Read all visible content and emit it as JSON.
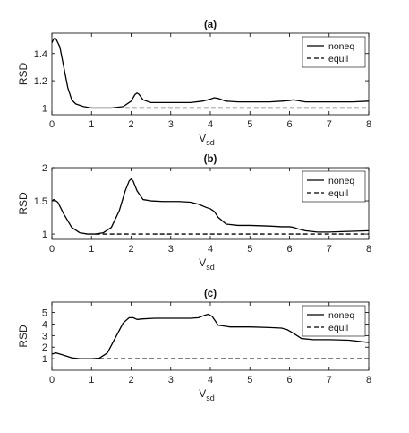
{
  "chart_data": [
    {
      "type": "line",
      "title": "(a)",
      "xlabel": "V",
      "xlabel_sub": "sd",
      "ylabel": "RSD",
      "xlim": [
        0,
        8
      ],
      "ylim": [
        0.95,
        1.55
      ],
      "xticks": [
        0,
        1,
        2,
        3,
        4,
        5,
        6,
        7,
        8
      ],
      "yticks": [
        1,
        1.2,
        1.4
      ],
      "legend": {
        "position": "top-right",
        "entries": [
          "noneq",
          "equil"
        ]
      },
      "series": [
        {
          "name": "noneq",
          "style": "solid",
          "x": [
            0,
            0.05,
            0.1,
            0.2,
            0.3,
            0.4,
            0.5,
            0.6,
            0.8,
            1.0,
            1.5,
            1.8,
            2.0,
            2.1,
            2.15,
            2.2,
            2.3,
            2.5,
            3.0,
            3.5,
            3.8,
            4.0,
            4.1,
            4.2,
            4.4,
            4.7,
            5.0,
            5.5,
            5.8,
            6.0,
            6.1,
            6.2,
            6.4,
            6.8,
            7.2,
            7.6,
            8.0
          ],
          "y": [
            1.48,
            1.51,
            1.51,
            1.45,
            1.3,
            1.15,
            1.06,
            1.03,
            1.01,
            1.0,
            1.0,
            1.01,
            1.05,
            1.1,
            1.11,
            1.1,
            1.06,
            1.04,
            1.04,
            1.04,
            1.05,
            1.065,
            1.075,
            1.07,
            1.05,
            1.045,
            1.045,
            1.045,
            1.05,
            1.055,
            1.06,
            1.055,
            1.045,
            1.045,
            1.045,
            1.045,
            1.05
          ]
        },
        {
          "name": "equil",
          "style": "dashed",
          "x": [
            1.85,
            8.0
          ],
          "y": [
            1.0,
            1.0
          ]
        }
      ]
    },
    {
      "type": "line",
      "title": "(b)",
      "xlabel": "V",
      "xlabel_sub": "sd",
      "ylabel": "RSD",
      "xlim": [
        0,
        8
      ],
      "ylim": [
        0.92,
        2.0
      ],
      "xticks": [
        0,
        1,
        2,
        3,
        4,
        5,
        6,
        7,
        8
      ],
      "yticks": [
        1,
        1.5,
        2
      ],
      "legend": {
        "position": "top-right",
        "entries": [
          "noneq",
          "equil"
        ]
      },
      "series": [
        {
          "name": "noneq",
          "style": "solid",
          "x": [
            0,
            0.05,
            0.15,
            0.3,
            0.5,
            0.7,
            0.9,
            1.1,
            1.3,
            1.5,
            1.7,
            1.85,
            1.95,
            2.0,
            2.05,
            2.15,
            2.3,
            2.5,
            2.8,
            3.2,
            3.5,
            3.7,
            3.9,
            4.0,
            4.1,
            4.2,
            4.4,
            4.7,
            5.0,
            5.5,
            5.8,
            6.0,
            6.1,
            6.2,
            6.4,
            6.7,
            7.0,
            7.5,
            8.0
          ],
          "y": [
            1.5,
            1.52,
            1.48,
            1.3,
            1.1,
            1.02,
            1.0,
            1.0,
            1.02,
            1.1,
            1.35,
            1.65,
            1.8,
            1.83,
            1.8,
            1.65,
            1.52,
            1.5,
            1.49,
            1.49,
            1.48,
            1.45,
            1.4,
            1.38,
            1.34,
            1.25,
            1.15,
            1.13,
            1.13,
            1.12,
            1.11,
            1.11,
            1.1,
            1.08,
            1.05,
            1.03,
            1.03,
            1.04,
            1.05
          ]
        },
        {
          "name": "equil",
          "style": "dashed",
          "x": [
            1.1,
            8.0
          ],
          "y": [
            1.0,
            1.0
          ]
        }
      ]
    },
    {
      "type": "line",
      "title": "(c)",
      "xlabel": "V",
      "xlabel_sub": "sd",
      "ylabel": "RSD",
      "xlim": [
        0,
        8
      ],
      "ylim": [
        0,
        5.9
      ],
      "xticks": [
        0,
        1,
        2,
        3,
        4,
        5,
        6,
        7,
        8
      ],
      "yticks": [
        1,
        2,
        3,
        4,
        5
      ],
      "legend": {
        "position": "top-right",
        "entries": [
          "noneq",
          "equil"
        ]
      },
      "series": [
        {
          "name": "noneq",
          "style": "solid",
          "x": [
            0,
            0.1,
            0.3,
            0.5,
            0.7,
            1.0,
            1.2,
            1.4,
            1.6,
            1.8,
            1.95,
            2.05,
            2.15,
            2.3,
            2.6,
            3.0,
            3.5,
            3.7,
            3.85,
            3.95,
            4.05,
            4.2,
            4.5,
            5.0,
            5.5,
            5.8,
            5.95,
            6.1,
            6.3,
            6.6,
            7.0,
            7.5,
            8.0
          ],
          "y": [
            1.4,
            1.5,
            1.3,
            1.08,
            1.0,
            1.0,
            1.05,
            1.5,
            2.8,
            4.1,
            4.55,
            4.55,
            4.4,
            4.45,
            4.5,
            4.5,
            4.5,
            4.55,
            4.75,
            4.85,
            4.65,
            3.9,
            3.75,
            3.75,
            3.7,
            3.65,
            3.5,
            3.2,
            2.75,
            2.65,
            2.65,
            2.6,
            2.4
          ]
        },
        {
          "name": "equil",
          "style": "dashed",
          "x": [
            1.2,
            8.0
          ],
          "y": [
            1.0,
            1.0
          ]
        }
      ]
    }
  ]
}
